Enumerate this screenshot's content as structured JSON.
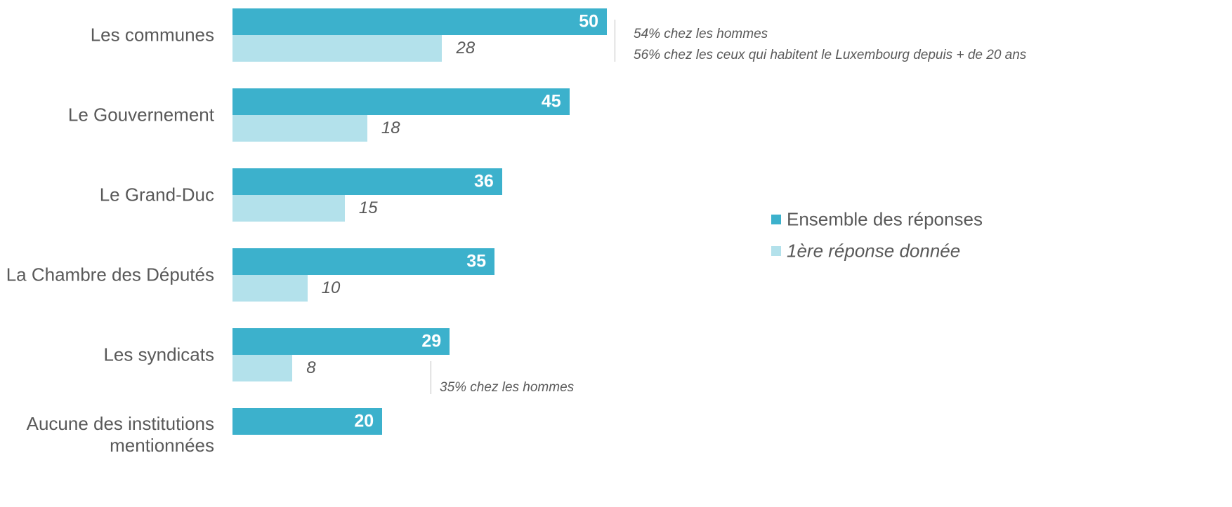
{
  "chart_data": {
    "type": "bar",
    "orientation": "horizontal",
    "categories": [
      "Les communes",
      "Le Gouvernement",
      "Le Grand-Duc",
      "La Chambre des Députés",
      "Les syndicats",
      "Aucune des institutions mentionnées"
    ],
    "series": [
      {
        "name": "Ensemble des réponses",
        "color": "#3cb1cc",
        "values": [
          50,
          45,
          36,
          35,
          29,
          20
        ]
      },
      {
        "name": "1ère réponse donnée",
        "color": "#b3e1eb",
        "values": [
          28,
          18,
          15,
          10,
          8,
          null
        ]
      }
    ],
    "annotations": [
      {
        "lines": [
          "54% chez les hommes",
          "56% chez les ceux qui habitent le Luxembourg depuis + de 20 ans"
        ]
      },
      {
        "lines": [
          "35% chez les hommes"
        ]
      }
    ],
    "legend": "right"
  }
}
